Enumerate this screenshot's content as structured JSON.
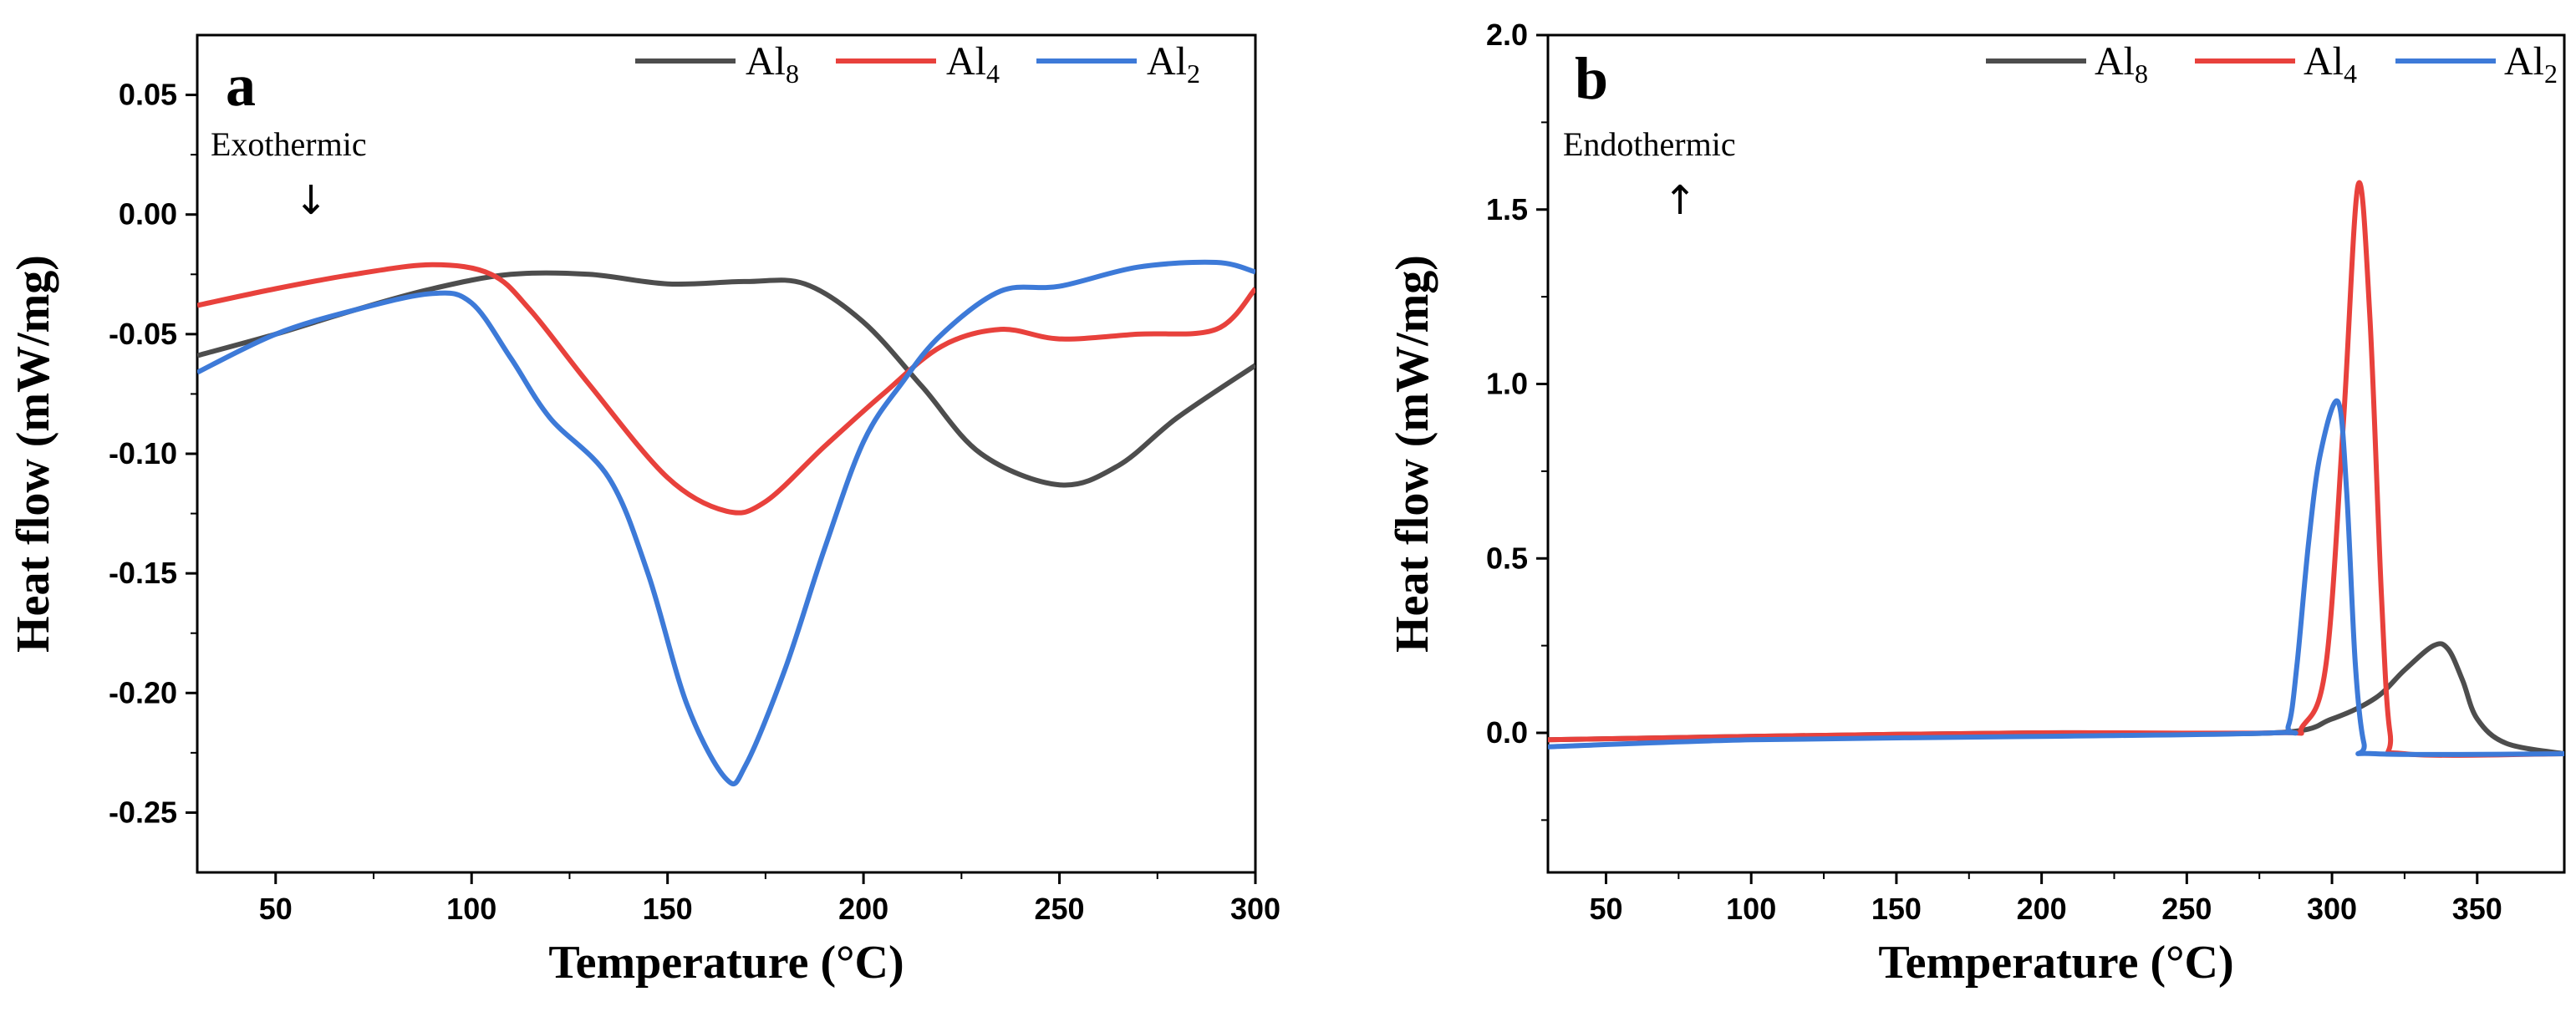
{
  "colors": {
    "Al8": "#4d4d4d",
    "Al4": "#e8413c",
    "Al2": "#3d7ad8"
  },
  "chart_data": [
    {
      "panel": "a",
      "type": "line",
      "title": "",
      "xlabel": "Temperature (°C)",
      "ylabel": "Heat flow (mW/mg)",
      "xlim": [
        30,
        300
      ],
      "ylim": [
        -0.275,
        0.075
      ],
      "xticks": [
        50,
        100,
        150,
        200,
        250,
        300
      ],
      "yticks": [
        -0.25,
        -0.2,
        -0.15,
        -0.1,
        -0.05,
        0.0,
        0.05
      ],
      "xtick_labels": [
        "50",
        "100",
        "150",
        "200",
        "250",
        "300"
      ],
      "ytick_labels": [
        "-0.25",
        "-0.20",
        "-0.15",
        "-0.10",
        "-0.05",
        "0.00",
        "0.05"
      ],
      "legend": [
        {
          "base": "Al",
          "sub": "8",
          "key": "Al8"
        },
        {
          "base": "Al",
          "sub": "4",
          "key": "Al4"
        },
        {
          "base": "Al",
          "sub": "2",
          "key": "Al2"
        }
      ],
      "annotation": {
        "text": "Exothermic",
        "arrow": "↓",
        "x": 60,
        "y": 0.025
      },
      "series": [
        {
          "name": "Al8",
          "x": [
            30,
            50,
            70,
            90,
            110,
            130,
            150,
            170,
            185,
            200,
            215,
            230,
            250,
            265,
            280,
            300
          ],
          "y": [
            -0.059,
            -0.05,
            -0.04,
            -0.031,
            -0.025,
            -0.025,
            -0.029,
            -0.028,
            -0.029,
            -0.045,
            -0.072,
            -0.1,
            -0.113,
            -0.105,
            -0.085,
            -0.063
          ]
        },
        {
          "name": "Al4",
          "x": [
            30,
            50,
            70,
            90,
            105,
            115,
            130,
            150,
            165,
            175,
            190,
            205,
            220,
            235,
            250,
            270,
            290,
            300
          ],
          "y": [
            -0.038,
            -0.031,
            -0.025,
            -0.021,
            -0.025,
            -0.04,
            -0.071,
            -0.11,
            -0.124,
            -0.12,
            -0.097,
            -0.075,
            -0.055,
            -0.048,
            -0.052,
            -0.05,
            -0.048,
            -0.031
          ]
        },
        {
          "name": "Al2",
          "x": [
            30,
            50,
            70,
            90,
            100,
            110,
            120,
            135,
            145,
            155,
            165,
            170,
            180,
            190,
            200,
            210,
            220,
            235,
            250,
            270,
            290,
            300
          ],
          "y": [
            -0.066,
            -0.05,
            -0.04,
            -0.033,
            -0.037,
            -0.06,
            -0.085,
            -0.11,
            -0.15,
            -0.205,
            -0.236,
            -0.23,
            -0.19,
            -0.14,
            -0.095,
            -0.07,
            -0.05,
            -0.032,
            -0.03,
            -0.022,
            -0.02,
            -0.024
          ]
        }
      ]
    },
    {
      "panel": "b",
      "type": "line",
      "title": "",
      "xlabel": "Temperature (°C)",
      "ylabel": "Heat flow (mW/mg)",
      "xlim": [
        30,
        380
      ],
      "ylim": [
        -0.4,
        2.0
      ],
      "xticks": [
        50,
        100,
        150,
        200,
        250,
        300,
        350
      ],
      "yticks": [
        0.0,
        0.5,
        1.0,
        1.5,
        2.0
      ],
      "xtick_labels": [
        "50",
        "100",
        "150",
        "200",
        "250",
        "300",
        "350"
      ],
      "ytick_labels": [
        "0.0",
        "0.5",
        "1.0",
        "1.5",
        "2.0"
      ],
      "legend": [
        {
          "base": "Al",
          "sub": "8",
          "key": "Al8"
        },
        {
          "base": "Al",
          "sub": "4",
          "key": "Al4"
        },
        {
          "base": "Al",
          "sub": "2",
          "key": "Al2"
        }
      ],
      "annotation": {
        "text": "Endothermic",
        "arrow": "↑",
        "x": 70,
        "y": 1.66
      },
      "series": [
        {
          "name": "Al8",
          "x": [
            30,
            100,
            200,
            280,
            300,
            315,
            325,
            335,
            340,
            345,
            350,
            360,
            380
          ],
          "y": [
            -0.02,
            -0.01,
            0.0,
            0.0,
            0.04,
            0.1,
            0.18,
            0.25,
            0.24,
            0.15,
            0.04,
            -0.03,
            -0.06
          ]
        },
        {
          "name": "Al4",
          "x": [
            30,
            100,
            200,
            280,
            290,
            298,
            304,
            309,
            313,
            317,
            320,
            325,
            380
          ],
          "y": [
            -0.02,
            -0.01,
            0.0,
            0.0,
            0.02,
            0.2,
            0.9,
            1.57,
            1.2,
            0.4,
            0.0,
            -0.06,
            -0.06
          ]
        },
        {
          "name": "Al2",
          "x": [
            30,
            100,
            200,
            280,
            285,
            288,
            292,
            296,
            302,
            305,
            308,
            311,
            315,
            380
          ],
          "y": [
            -0.04,
            -0.02,
            -0.01,
            0.0,
            0.02,
            0.2,
            0.55,
            0.8,
            0.95,
            0.7,
            0.2,
            -0.03,
            -0.06,
            -0.06
          ]
        }
      ]
    }
  ]
}
